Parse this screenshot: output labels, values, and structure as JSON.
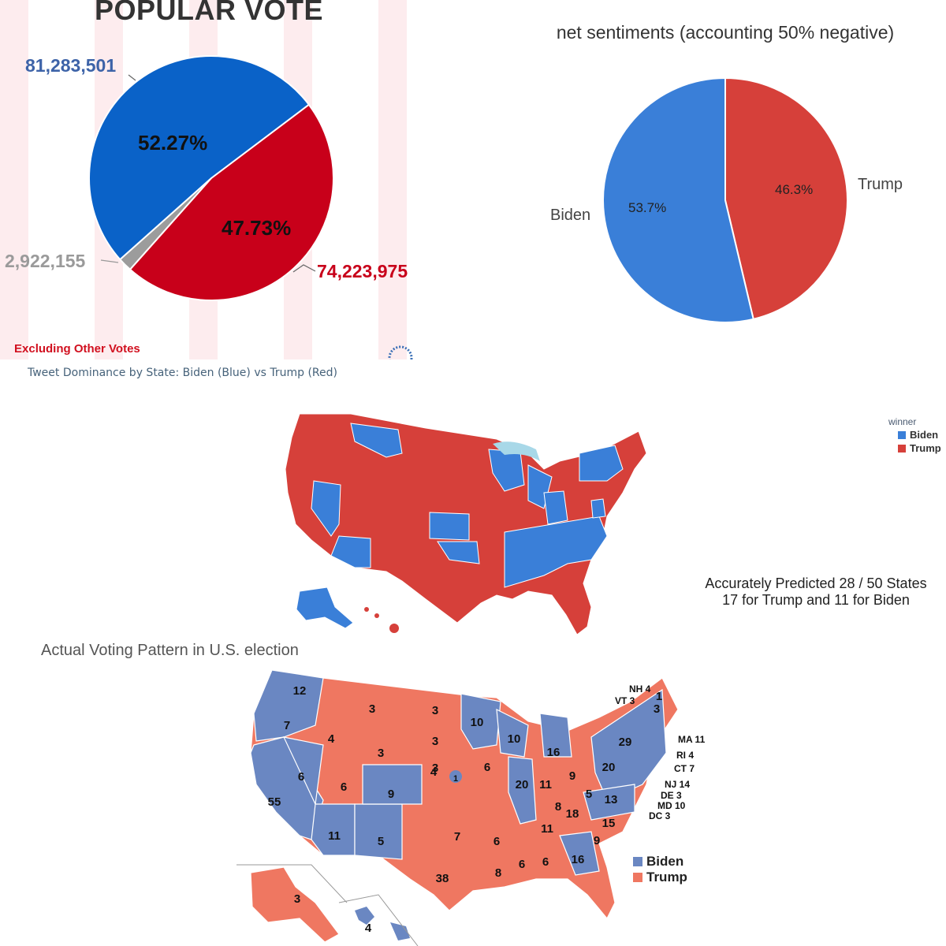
{
  "chart_data": [
    {
      "type": "pie",
      "title": "POPULAR VOTE",
      "slices": [
        {
          "label": "Biden",
          "value": 81283501,
          "percent_label": "52.27%",
          "value_label": "81,283,501",
          "color": "#0a62c8"
        },
        {
          "label": "Trump",
          "value": 74223975,
          "percent_label": "47.73%",
          "value_label": "74,223,975",
          "color": "#c8001a"
        },
        {
          "label": "Other",
          "value": 2922155,
          "percent_label": "",
          "value_label": "2,922,155",
          "color": "#9c9c9c"
        }
      ],
      "note": "Excluding Other Votes"
    },
    {
      "type": "pie",
      "title": "net sentiments (accounting 50% negative)",
      "slices": [
        {
          "label": "Biden",
          "value": 53.7,
          "percent_label": "53.7%",
          "color": "#3a7fd8"
        },
        {
          "label": "Trump",
          "value": 46.3,
          "percent_label": "46.3%",
          "color": "#d6403a"
        }
      ]
    }
  ],
  "tweet_map": {
    "title": "Tweet Dominance by State: Biden (Blue) vs Trump (Red)",
    "legend_title": "winner",
    "legend": [
      {
        "label": "Biden",
        "color": "#3a7fd8"
      },
      {
        "label": "Trump",
        "color": "#d6403a"
      }
    ],
    "note_line1": "Accurately Predicted 28 / 50 States",
    "note_line2": "17 for Trump  and 11 for Biden"
  },
  "actual_map": {
    "title": "Actual Voting Pattern in U.S. election",
    "legend": [
      {
        "label": "Biden",
        "color": "#6a87c2"
      },
      {
        "label": "Trump",
        "color": "#ef7761"
      }
    ],
    "labels": [
      "12",
      "7",
      "55",
      "6",
      "11",
      "3",
      "4",
      "6",
      "5",
      "3",
      "3",
      "9",
      "3",
      "3",
      "4",
      "6",
      "7",
      "38",
      "10",
      "10",
      "6",
      "8",
      "6",
      "20",
      "16",
      "11",
      "6",
      "9",
      "18",
      "11",
      "8",
      "16",
      "29",
      "5",
      "13",
      "15",
      "9",
      "20",
      "29",
      "3",
      "1",
      "1",
      "3",
      "4"
    ],
    "callouts": [
      "NH 4",
      "VT 3",
      "MA 11",
      "RI 4",
      "CT 7",
      "NJ 14",
      "DE 3",
      "MD 10",
      "DC 3"
    ]
  },
  "colors": {
    "biden_blue": "#3a7fd8",
    "trump_red": "#d6403a",
    "actual_blue": "#6a87c2",
    "actual_red": "#ef7761"
  }
}
